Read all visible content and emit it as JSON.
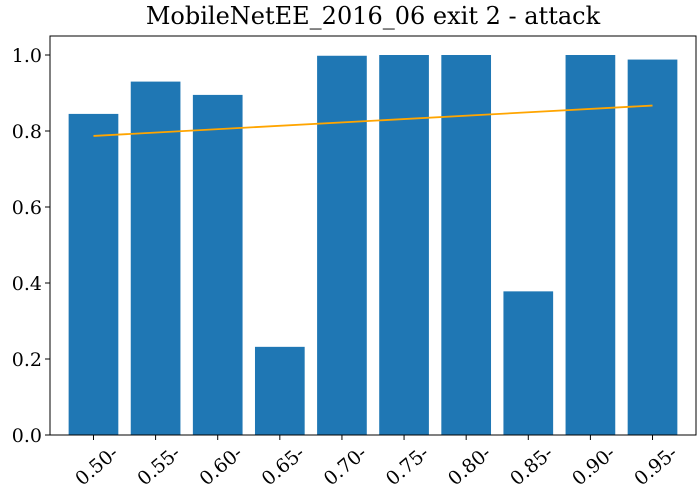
{
  "chart_data": {
    "type": "bar",
    "title": "MobileNetEE_2016_06 exit 2 - attack",
    "xlabel": "",
    "ylabel": "",
    "categories": [
      "0.50-",
      "0.55-",
      "0.60-",
      "0.65-",
      "0.70-",
      "0.75-",
      "0.80-",
      "0.85-",
      "0.90-",
      "0.95-"
    ],
    "values": [
      0.845,
      0.93,
      0.895,
      0.232,
      0.998,
      1.0,
      1.0,
      0.378,
      1.0,
      0.988
    ],
    "trend_line": {
      "start": 0.787,
      "end": 0.867
    },
    "ylim": [
      0,
      1.05
    ],
    "yticks": [
      "0.0",
      "0.2",
      "0.4",
      "0.6",
      "0.8",
      "1.0"
    ],
    "grid": false,
    "colors": {
      "bar": "#1f77b4",
      "trend": "#ffa500"
    }
  }
}
